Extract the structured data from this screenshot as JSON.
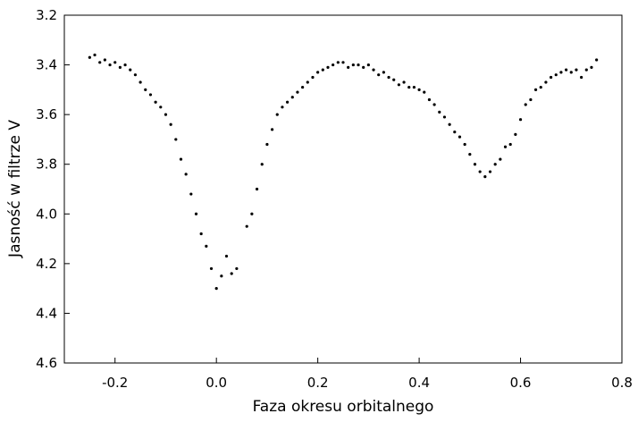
{
  "chart_data": {
    "type": "scatter",
    "title": "",
    "xlabel": "Faza okresu orbitalnego",
    "ylabel": "Jasność w filtrze V",
    "xlim": [
      -0.3,
      0.8
    ],
    "ylim": [
      3.2,
      4.6
    ],
    "y_inverted": true,
    "grid": false,
    "legend": "none",
    "x_ticks": [
      -0.2,
      0.0,
      0.2,
      0.4,
      0.6,
      0.8
    ],
    "x_tick_labels": [
      "-0.2",
      "0.0",
      "0.2",
      "0.4",
      "0.6",
      "0.8"
    ],
    "y_ticks": [
      3.2,
      3.4,
      3.6,
      3.8,
      4.0,
      4.2,
      4.4,
      4.6
    ],
    "y_tick_labels": [
      "3.2",
      "3.4",
      "3.6",
      "3.8",
      "4.0",
      "4.2",
      "4.4",
      "4.6"
    ],
    "marker_color": "#000000",
    "series": [
      {
        "x": [
          -0.25,
          -0.24,
          -0.23,
          -0.22,
          -0.21,
          -0.2,
          -0.19,
          -0.18,
          -0.17,
          -0.16,
          -0.15,
          -0.14,
          -0.13,
          -0.12,
          -0.11,
          -0.1,
          -0.09,
          -0.08,
          -0.07,
          -0.06,
          -0.05,
          -0.04,
          -0.03,
          -0.02,
          -0.01,
          0.0,
          0.01,
          0.02,
          0.03,
          0.04,
          0.06,
          0.07,
          0.08,
          0.09,
          0.1,
          0.11,
          0.12,
          0.13,
          0.14,
          0.15,
          0.16,
          0.17,
          0.18,
          0.19,
          0.2,
          0.21,
          0.22,
          0.23,
          0.24,
          0.25,
          0.26,
          0.27,
          0.28,
          0.29,
          0.3,
          0.31,
          0.32,
          0.33,
          0.34,
          0.35,
          0.36,
          0.37,
          0.38,
          0.39,
          0.4,
          0.41,
          0.42,
          0.43,
          0.44,
          0.45,
          0.46,
          0.47,
          0.48,
          0.49,
          0.5,
          0.51,
          0.52,
          0.53,
          0.54,
          0.55,
          0.56,
          0.57,
          0.58,
          0.59,
          0.6,
          0.61,
          0.62,
          0.63,
          0.64,
          0.65,
          0.66,
          0.67,
          0.68,
          0.69,
          0.7,
          0.71,
          0.72,
          0.73,
          0.74,
          0.75
        ],
        "y": [
          3.37,
          3.36,
          3.39,
          3.38,
          3.4,
          3.39,
          3.41,
          3.4,
          3.42,
          3.44,
          3.47,
          3.5,
          3.52,
          3.55,
          3.57,
          3.6,
          3.64,
          3.7,
          3.78,
          3.84,
          3.92,
          4.0,
          4.08,
          4.13,
          4.22,
          4.3,
          4.25,
          4.17,
          4.24,
          4.22,
          4.05,
          4.0,
          3.9,
          3.8,
          3.72,
          3.66,
          3.6,
          3.57,
          3.55,
          3.53,
          3.51,
          3.49,
          3.47,
          3.45,
          3.43,
          3.42,
          3.41,
          3.4,
          3.39,
          3.39,
          3.41,
          3.4,
          3.4,
          3.41,
          3.4,
          3.42,
          3.44,
          3.43,
          3.45,
          3.46,
          3.48,
          3.47,
          3.49,
          3.49,
          3.5,
          3.51,
          3.54,
          3.56,
          3.59,
          3.61,
          3.64,
          3.67,
          3.69,
          3.72,
          3.76,
          3.8,
          3.83,
          3.85,
          3.83,
          3.8,
          3.78,
          3.73,
          3.72,
          3.68,
          3.62,
          3.56,
          3.54,
          3.5,
          3.49,
          3.47,
          3.45,
          3.44,
          3.43,
          3.42,
          3.43,
          3.42,
          3.45,
          3.42,
          3.41,
          3.38
        ]
      }
    ]
  }
}
